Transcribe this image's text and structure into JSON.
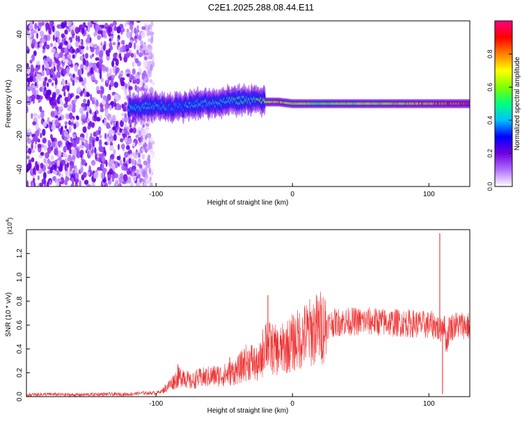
{
  "title": "C2E1.2025.288.08.44.E11",
  "chart_data": [
    {
      "type": "heatmap",
      "xlabel": "Height of straight line (km)",
      "ylabel": "Frequency (Hz)",
      "xlim": [
        -195,
        130
      ],
      "ylim": [
        -50,
        48
      ],
      "xticks": [
        -100,
        0,
        100
      ],
      "yticks": [
        -40,
        -20,
        0,
        20,
        40
      ],
      "colorbar": {
        "label": "Normalized spectral amplitude",
        "range": [
          0,
          1
        ],
        "ticks": [
          "0.0",
          "0.2",
          "0.4",
          "0.6",
          "0.8"
        ],
        "tick_values": [
          0,
          0.2,
          0.4,
          0.6,
          0.8
        ],
        "colors": [
          "#ffffff",
          "#b070ff",
          "#7000e0",
          "#0000ff",
          "#00c0ff",
          "#00ff80",
          "#80ff00",
          "#ffff00",
          "#ff8000",
          "#ff0000",
          "#ff0080"
        ]
      },
      "noise_region": {
        "x_start": -195,
        "x_end": -102,
        "amplitude": 0.2
      },
      "ridge": [
        {
          "x": -120,
          "y": -4,
          "amp": 0.45
        },
        {
          "x": -110,
          "y": -3,
          "amp": 0.45
        },
        {
          "x": -100,
          "y": -2,
          "amp": 0.45
        },
        {
          "x": -90,
          "y": -3,
          "amp": 0.4
        },
        {
          "x": -80,
          "y": -3,
          "amp": 0.4
        },
        {
          "x": -70,
          "y": -1,
          "amp": 0.45
        },
        {
          "x": -60,
          "y": -1,
          "amp": 0.45
        },
        {
          "x": -50,
          "y": 0,
          "amp": 0.45
        },
        {
          "x": -40,
          "y": 1,
          "amp": 0.5
        },
        {
          "x": -30,
          "y": 1,
          "amp": 0.5
        },
        {
          "x": -20,
          "y": 0,
          "amp": 0.7
        },
        {
          "x": -10,
          "y": 0,
          "amp": 0.8
        },
        {
          "x": 0,
          "y": -1,
          "amp": 0.7
        },
        {
          "x": 20,
          "y": -1,
          "amp": 0.6
        },
        {
          "x": 40,
          "y": -1,
          "amp": 0.65
        },
        {
          "x": 60,
          "y": -1,
          "amp": 0.7
        },
        {
          "x": 80,
          "y": -1,
          "amp": 0.75
        },
        {
          "x": 100,
          "y": -1,
          "amp": 0.85
        },
        {
          "x": 110,
          "y": -1,
          "amp": 0.9
        },
        {
          "x": 130,
          "y": -1,
          "amp": 0.95
        }
      ]
    },
    {
      "type": "line",
      "xlabel": "Height of straight line (km)",
      "ylabel": "SNR (10 * v/v)",
      "y_multiplier": "(x10",
      "y_multiplier_exp": "4",
      "y_multiplier_close": ")",
      "xlim": [
        -195,
        130
      ],
      "ylim": [
        0,
        1.4
      ],
      "xticks": [
        -100,
        0,
        100
      ],
      "yticks": [
        "0.0",
        "0.2",
        "0.4",
        "0.6",
        "0.8",
        "1.0",
        "1.2"
      ],
      "ytick_values": [
        0,
        0.2,
        0.4,
        0.6,
        0.8,
        1.0,
        1.2
      ],
      "color": "#ee3333",
      "series": [
        {
          "x": [
            -195,
            -180,
            -160,
            -140,
            -120,
            -110,
            -100,
            -95,
            -90,
            -85,
            -80,
            -75,
            -70,
            -60,
            -50,
            -40,
            -35,
            -30,
            -25,
            -22,
            -20,
            -18,
            -15,
            -10,
            0,
            10,
            20,
            30,
            40,
            50,
            60,
            70,
            80,
            90,
            100,
            105,
            108,
            110,
            111,
            113,
            115,
            120,
            125,
            130
          ],
          "y": [
            0.015,
            0.02,
            0.015,
            0.02,
            0.02,
            0.03,
            0.03,
            0.05,
            0.1,
            0.15,
            0.18,
            0.12,
            0.15,
            0.17,
            0.18,
            0.22,
            0.28,
            0.3,
            0.25,
            0.35,
            0.5,
            0.42,
            0.4,
            0.38,
            0.45,
            0.52,
            0.58,
            0.62,
            0.63,
            0.63,
            0.63,
            0.62,
            0.62,
            0.61,
            0.6,
            0.6,
            0.55,
            0.62,
            0.61,
            0.45,
            0.58,
            0.6,
            0.6,
            0.59
          ]
        }
      ],
      "spikes": [
        {
          "x": -84,
          "y": 0.27
        },
        {
          "x": -46,
          "y": 0.33
        },
        {
          "x": -18,
          "y": 0.85
        },
        {
          "x": -12,
          "y": 0.52
        },
        {
          "x": 108,
          "y": 1.37
        },
        {
          "x": 110,
          "y": 0.02
        }
      ]
    }
  ]
}
